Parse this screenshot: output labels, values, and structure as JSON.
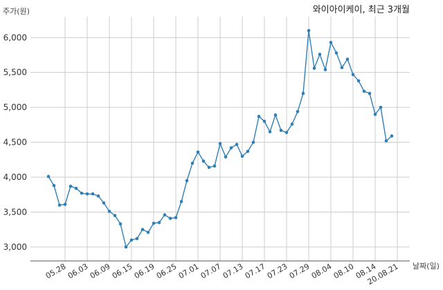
{
  "chart_data": {
    "type": "line",
    "title": "와이아이케이, 최근 3개월",
    "ylabel": "주가(원)",
    "xlabel": "날짜(일)",
    "ylim": [
      2800,
      6300
    ],
    "yticks": [
      3000,
      3500,
      4000,
      4500,
      5000,
      5500,
      6000
    ],
    "ytick_labels": [
      "3,000",
      "3,500",
      "4,000",
      "4,500",
      "5,000",
      "5,500",
      "6,000"
    ],
    "xtick_labels": [
      "05.28",
      "06.03",
      "06.09",
      "06.15",
      "06.19",
      "06.25",
      "07.01",
      "07.07",
      "07.13",
      "07.17",
      "07.23",
      "07.29",
      "08.04",
      "08.10",
      "08.14",
      "20.08.21"
    ],
    "xtick_index": [
      3,
      7,
      11,
      15,
      19,
      23,
      27,
      31,
      35,
      39,
      43,
      47,
      51,
      55,
      59,
      63
    ],
    "grid": true,
    "line_color": "#2f7fb6",
    "series": [
      {
        "values": [
          4010,
          3880,
          3600,
          3610,
          3870,
          3840,
          3770,
          3760,
          3760,
          3730,
          3630,
          3510,
          3450,
          3330,
          3000,
          3100,
          3120,
          3250,
          3210,
          3340,
          3350,
          3460,
          3410,
          3420,
          3650,
          3950,
          4200,
          4360,
          4230,
          4140,
          4160,
          4480,
          4290,
          4420,
          4470,
          4300,
          4370,
          4500,
          4870,
          4800,
          4650,
          4890,
          4670,
          4640,
          4760,
          4940,
          5200,
          6100,
          5560,
          5760,
          5540,
          5930,
          5780,
          5570,
          5690,
          5470,
          5380,
          5230,
          5200,
          4900,
          5000,
          4520,
          4590
        ]
      }
    ]
  }
}
